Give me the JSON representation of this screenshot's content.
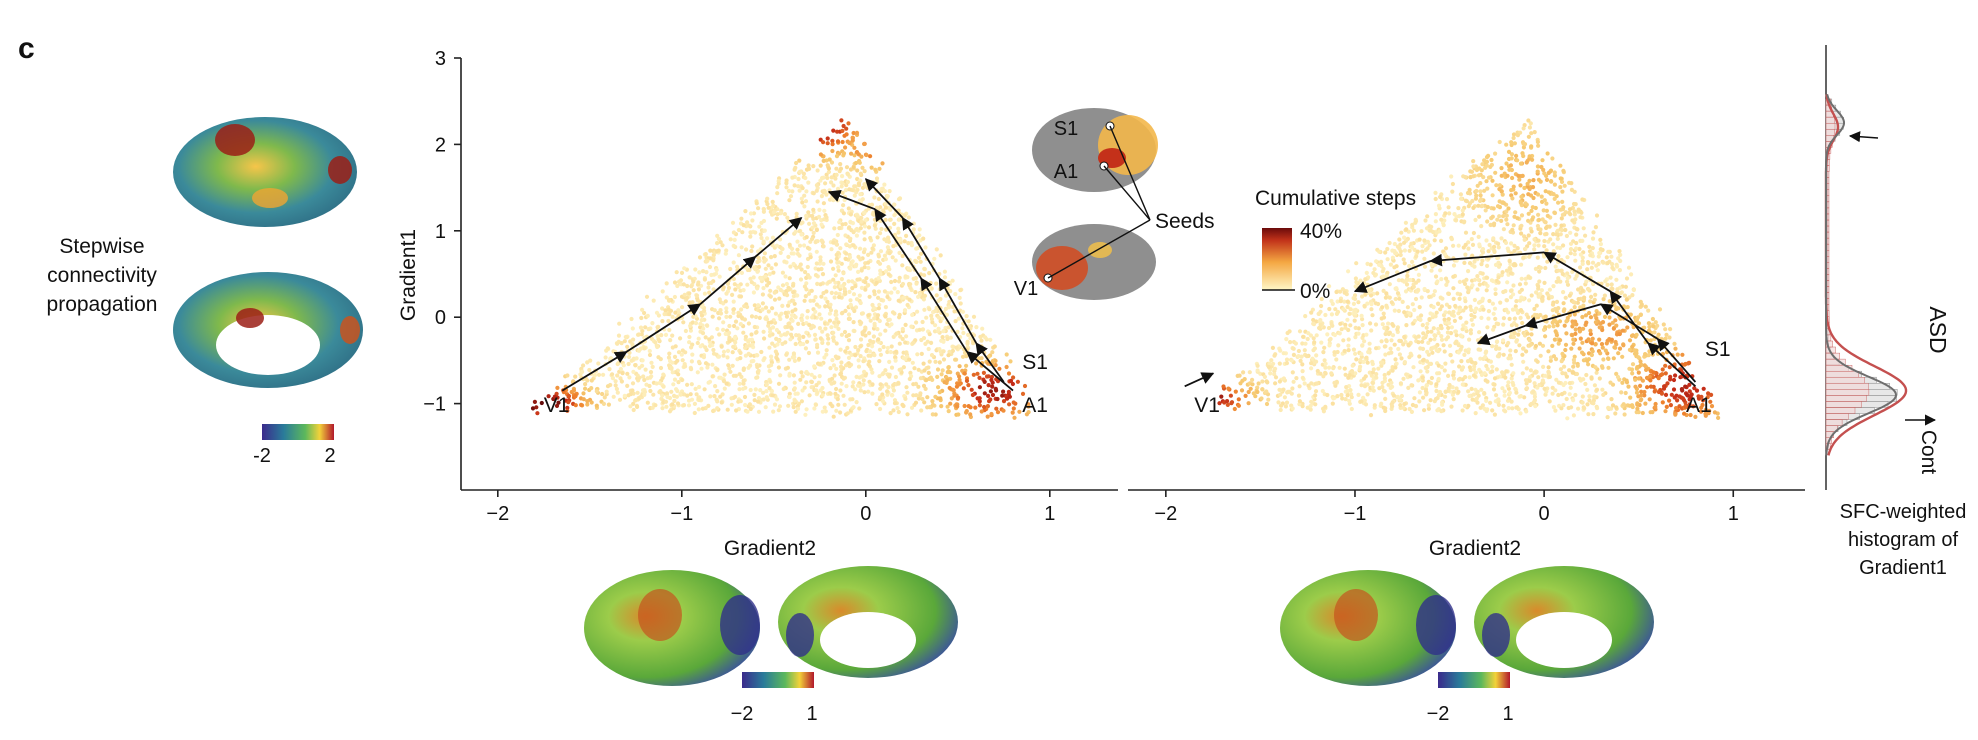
{
  "panel_label": "c",
  "left_caption": [
    "Stepwise",
    "connectivity",
    "propagation"
  ],
  "left_colorbar": {
    "min_label": "-2",
    "max_label": "2"
  },
  "bottom_colorbar_left": {
    "min_label": "−2",
    "max_label": "1"
  },
  "bottom_colorbar_right": {
    "min_label": "−2",
    "max_label": "1"
  },
  "legend": {
    "title": "Cumulative steps",
    "max_label": "40%",
    "min_label": "0%"
  },
  "seeds_label": "Seeds",
  "inset_labels": {
    "s1": "S1",
    "a1": "A1",
    "v1": "V1"
  },
  "histogram": {
    "caption": [
      "SFC-weighted",
      "histogram of",
      "Gradient1"
    ],
    "asd_label": "ASD",
    "cont_label": "Cont",
    "asd_color": "#c4504f",
    "cont_color": "#6e6e6e"
  },
  "colors": {
    "low": "#fbe9a6",
    "mid": "#ef8a2a",
    "high": "#a01a14",
    "darkest": "#5a0a0a"
  },
  "chart_data": [
    {
      "type": "scatter",
      "title": "",
      "xlabel": "Gradient2",
      "ylabel": "Gradient1",
      "xlim": [
        -2.2,
        1.3
      ],
      "ylim": [
        -2,
        3
      ],
      "xticks": [
        "−2",
        "−1",
        "0",
        "1"
      ],
      "yticks": [
        "−1",
        "0",
        "1",
        "2",
        "3"
      ],
      "point_labels": [
        {
          "text": "V1",
          "x": -1.75,
          "y": -1.1
        },
        {
          "text": "S1",
          "x": 0.85,
          "y": -0.6
        },
        {
          "text": "A1",
          "x": 0.85,
          "y": -1.1
        }
      ],
      "paths": [
        {
          "name": "V1",
          "points": [
            [
              -1.65,
              -0.85
            ],
            [
              -1.3,
              -0.4
            ],
            [
              -0.9,
              0.15
            ],
            [
              -0.6,
              0.7
            ],
            [
              -0.35,
              1.15
            ]
          ]
        },
        {
          "name": "S1",
          "points": [
            [
              0.75,
              -0.75
            ],
            [
              0.6,
              -0.3
            ],
            [
              0.4,
              0.45
            ],
            [
              0.2,
              1.15
            ],
            [
              0.0,
              1.6
            ]
          ]
        },
        {
          "name": "A1",
          "points": [
            [
              0.8,
              -0.85
            ],
            [
              0.55,
              -0.4
            ],
            [
              0.3,
              0.45
            ],
            [
              0.05,
              1.25
            ],
            [
              -0.2,
              1.45
            ]
          ]
        }
      ]
    },
    {
      "type": "scatter",
      "title": "",
      "xlabel": "Gradient2",
      "ylabel": "",
      "xlim": [
        -2.2,
        1.3
      ],
      "ylim": [
        -2,
        3
      ],
      "xticks": [
        "−2",
        "−1",
        "0",
        "1"
      ],
      "point_labels": [
        {
          "text": "V1",
          "x": -1.85,
          "y": -1.1
        },
        {
          "text": "S1",
          "x": 0.85,
          "y": -0.45
        },
        {
          "text": "A1",
          "x": 0.75,
          "y": -1.1
        }
      ],
      "paths": [
        {
          "name": "S1",
          "points": [
            [
              0.8,
              -0.8
            ],
            [
              0.55,
              -0.3
            ],
            [
              0.35,
              0.3
            ],
            [
              0.0,
              0.75
            ],
            [
              -0.6,
              0.65
            ],
            [
              -1.0,
              0.3
            ]
          ]
        },
        {
          "name": "A1",
          "points": [
            [
              0.8,
              -0.75
            ],
            [
              0.6,
              -0.25
            ],
            [
              0.3,
              0.15
            ],
            [
              -0.1,
              -0.1
            ],
            [
              -0.35,
              -0.3
            ]
          ]
        },
        {
          "name": "V1",
          "points": [
            [
              -1.9,
              -0.8
            ],
            [
              -1.75,
              -0.65
            ]
          ]
        }
      ]
    },
    {
      "type": "histogram",
      "title": "",
      "xlabel": "SFC-weighted histogram of Gradient1",
      "series": [
        {
          "name": "ASD"
        },
        {
          "name": "Cont"
        }
      ]
    }
  ]
}
